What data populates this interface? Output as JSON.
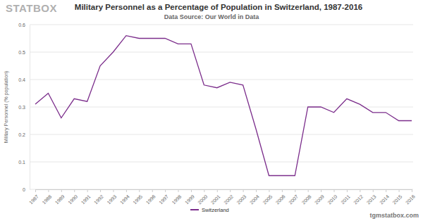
{
  "chart_data": {
    "type": "line",
    "title": "Military Personnel as a Percentage of Population in Switzerland, 1987-2016",
    "subtitle": "Data Source: Our World in Data",
    "y_label": "Military Personnel (% population)",
    "annotations": [
      "STATBOX",
      "tgmstatbox.com"
    ],
    "categories": [
      "1987",
      "1988",
      "1989",
      "1990",
      "1991",
      "1992",
      "1993",
      "1994",
      "1995",
      "1996",
      "1997",
      "1998",
      "1999",
      "2000",
      "2001",
      "2002",
      "2003",
      "2004",
      "2005",
      "2006",
      "2007",
      "2008",
      "2009",
      "2010",
      "2011",
      "2012",
      "2013",
      "2014",
      "2015",
      "2016"
    ],
    "series": [
      {
        "name": "Switzerland",
        "color": "#7b2d8b",
        "values": [
          0.31,
          0.35,
          0.26,
          0.33,
          0.32,
          0.45,
          0.5,
          0.56,
          0.55,
          0.55,
          0.55,
          0.53,
          0.53,
          0.38,
          0.37,
          0.39,
          0.38,
          0.22,
          0.05,
          0.05,
          0.05,
          0.3,
          0.3,
          0.28,
          0.33,
          0.31,
          0.28,
          0.28,
          0.25,
          0.25
        ]
      }
    ],
    "ylim": [
      0,
      0.6
    ],
    "yticks": [
      0,
      0.1,
      0.2,
      0.3,
      0.4,
      0.5,
      0.6
    ],
    "grid": true,
    "legend": "bottom"
  }
}
